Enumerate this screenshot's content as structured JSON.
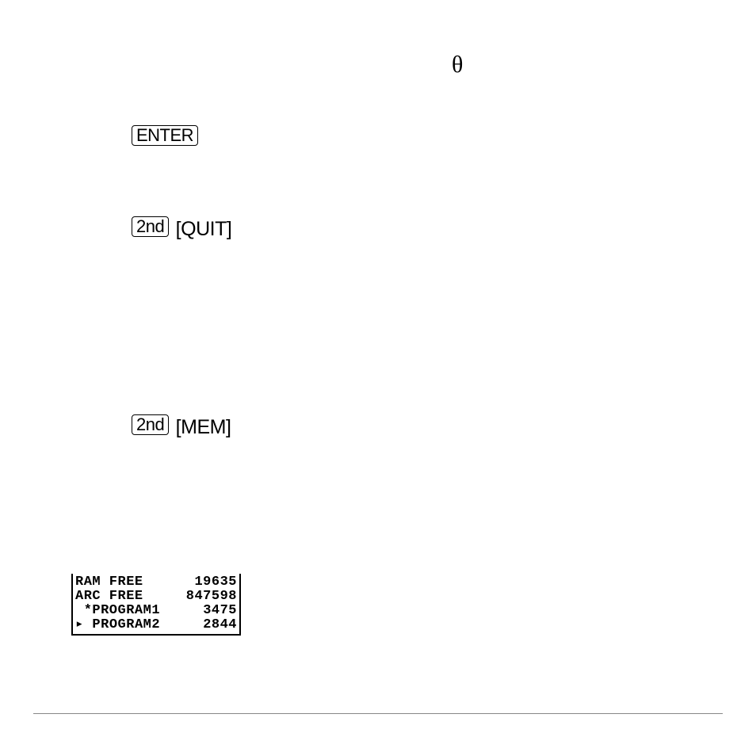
{
  "theta_symbol": "θ",
  "keys": {
    "enter": {
      "label": "ENTER"
    },
    "quit": {
      "second_label": "2nd",
      "bracket_label": "[QUIT]"
    },
    "mem": {
      "second_label": "2nd",
      "bracket_label": "[MEM]"
    }
  },
  "lcd": {
    "rows": [
      {
        "left": "RAM FREE",
        "right": "19635"
      },
      {
        "left": "ARC FREE",
        "right": "847598"
      },
      {
        "left": " *PROGRAM1",
        "right": "3475"
      },
      {
        "left": "▸ PROGRAM2",
        "right": "2844"
      }
    ],
    "font_color": "#000000",
    "background_color": "#ffffff",
    "border_color": "#000000"
  },
  "hr_color": "#888888"
}
